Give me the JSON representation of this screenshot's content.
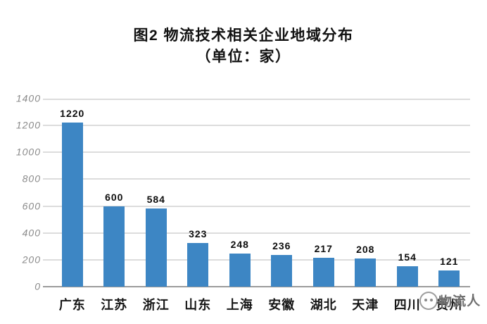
{
  "figure": {
    "title": "图2 物流技术相关企业地域分布",
    "subtitle": "（单位：家）"
  },
  "chart_data": {
    "type": "bar",
    "title": "图2 物流技术相关企业地域分布",
    "subtitle": "（单位：家）",
    "categories": [
      "广东",
      "江苏",
      "浙江",
      "山东",
      "上海",
      "安徽",
      "湖北",
      "天津",
      "四川",
      "贵州"
    ],
    "values": [
      1220,
      600,
      584,
      323,
      248,
      236,
      217,
      208,
      154,
      121
    ],
    "value_labels": [
      "1220",
      "600",
      "584",
      "323",
      "248",
      "236",
      "217",
      "208",
      "154",
      "121"
    ],
    "xlabel": "",
    "ylabel": "",
    "ylim": [
      0,
      1400
    ],
    "yticks": [
      0,
      200,
      400,
      600,
      800,
      1000,
      1200,
      1400
    ],
    "grid": true,
    "legend": "none",
    "bar_color": "#3d86c4"
  },
  "colors": {
    "bar": "#3d86c4",
    "gridline": "#dcdcdc",
    "baseline": "#9b9b9b",
    "ytick_text": "#8a8a8a",
    "text": "#111111",
    "background": "#ffffff"
  },
  "watermark": {
    "logo": "circle-face-logo",
    "text": "物流人"
  }
}
